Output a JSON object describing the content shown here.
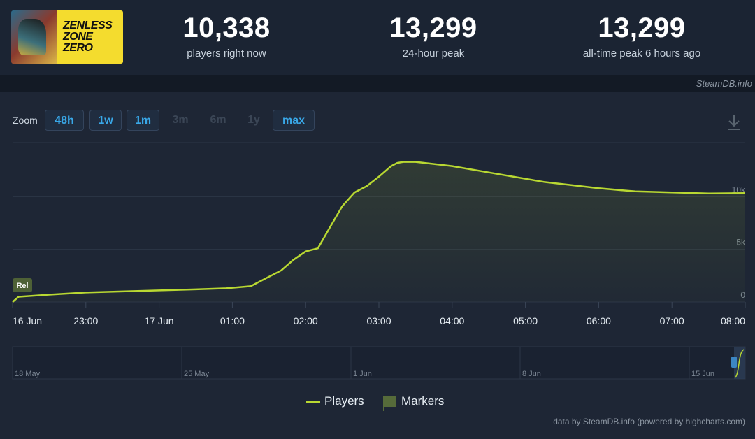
{
  "header": {
    "game_logo_lines": [
      "ZENLESS",
      "ZONE",
      "ZERO"
    ],
    "stats": [
      {
        "value": "10,338",
        "label": "players right now"
      },
      {
        "value": "13,299",
        "label": "24-hour peak"
      },
      {
        "value": "13,299",
        "label": "all-time peak 6 hours ago"
      }
    ],
    "credit": "SteamDB.info"
  },
  "zoom": {
    "label": "Zoom",
    "buttons": [
      {
        "label": "48h",
        "enabled": true
      },
      {
        "label": "1w",
        "enabled": true
      },
      {
        "label": "1m",
        "enabled": true
      },
      {
        "label": "3m",
        "enabled": false
      },
      {
        "label": "6m",
        "enabled": false
      },
      {
        "label": "1y",
        "enabled": false
      },
      {
        "label": "max",
        "enabled": true
      }
    ]
  },
  "chart_data": {
    "type": "line",
    "series": [
      {
        "name": "Players",
        "color": "#b9d832",
        "x": [
          "22:00",
          "22:05",
          "22:30",
          "23:00",
          "23:30",
          "00:00",
          "00:30",
          "00:55",
          "01:15",
          "01:30",
          "01:40",
          "01:50",
          "02:00",
          "02:10",
          "02:20",
          "02:30",
          "02:40",
          "02:50",
          "03:00",
          "03:05",
          "03:10",
          "03:15",
          "03:20",
          "03:30",
          "04:00",
          "04:30",
          "05:00",
          "05:15",
          "05:30",
          "06:00",
          "06:30",
          "07:00",
          "07:30",
          "08:00"
        ],
        "y": [
          0,
          500,
          700,
          900,
          1000,
          1100,
          1200,
          1300,
          1500,
          2400,
          3000,
          4000,
          4800,
          5100,
          7100,
          9100,
          10400,
          11000,
          11900,
          12400,
          12900,
          13200,
          13299,
          13299,
          12900,
          12300,
          11700,
          11400,
          11200,
          10800,
          10500,
          10400,
          10300,
          10338
        ]
      }
    ],
    "x_ticks": [
      "16 Jun",
      "23:00",
      "17 Jun",
      "01:00",
      "02:00",
      "03:00",
      "04:00",
      "05:00",
      "06:00",
      "07:00",
      "08:00"
    ],
    "y_ticks": [
      "0",
      "5k",
      "10k"
    ],
    "ylim": [
      0,
      15000
    ],
    "marker": {
      "label": "Rel",
      "x": "22:00"
    },
    "navigator": {
      "labels": [
        "18 May",
        "25 May",
        "1 Jun",
        "8 Jun",
        "15 Jun"
      ]
    },
    "grid": true,
    "legend": {
      "position": "bottom-center",
      "items": [
        "Players",
        "Markers"
      ]
    }
  },
  "footer": {
    "source": "data by SteamDB.info (powered by highcharts.com)"
  }
}
